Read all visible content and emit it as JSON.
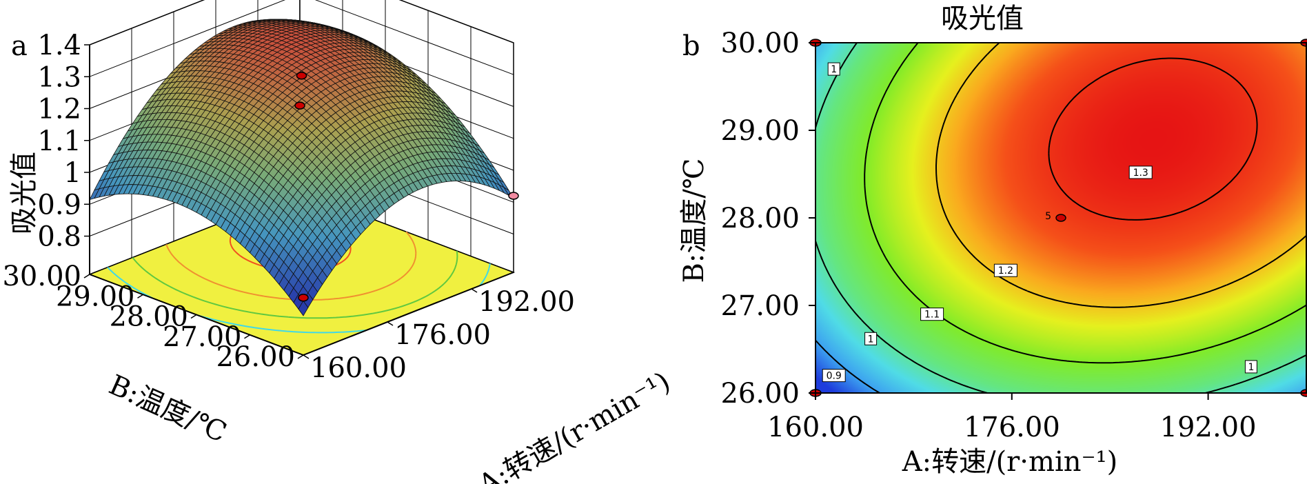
{
  "chart_data": [
    {
      "type": "surface",
      "panel_label": "a",
      "title": "",
      "xlabel": "A:转速/(r·min⁻¹)",
      "ylabel": "B:温度/℃",
      "zlabel": "吸光值",
      "x_ticks": [
        "160.00",
        "176.00",
        "192.00"
      ],
      "y_ticks": [
        "26.00",
        "27.00",
        "28.00",
        "29.00",
        "30.00"
      ],
      "z_ticks": [
        "0.8",
        "0.9",
        "1",
        "1.1",
        "1.2",
        "1.3",
        "1.4"
      ],
      "xlim": [
        160,
        200
      ],
      "ylim": [
        26,
        30
      ],
      "zlim": [
        0.8,
        1.4
      ],
      "surface_peak": {
        "x": 186,
        "y": 28.8,
        "z": 1.33
      },
      "surface_corners": [
        {
          "x": 160,
          "y": 26,
          "z": 0.85
        },
        {
          "x": 200,
          "y": 26,
          "z": 0.9
        },
        {
          "x": 160,
          "y": 30,
          "z": 0.93
        },
        {
          "x": 200,
          "y": 30,
          "z": 1.0
        }
      ],
      "design_points": [
        {
          "x": 160,
          "y": 26,
          "z": 0.86,
          "color": "#cc0000"
        },
        {
          "x": 200,
          "y": 30,
          "z": 0.95,
          "color": "#cc0000"
        },
        {
          "x": 200,
          "y": 26,
          "z": 0.92,
          "color": "#f08aa0"
        },
        {
          "x": 180,
          "y": 28,
          "z": 1.3,
          "color": "#cc0000"
        }
      ],
      "floor_color": "#f0f040",
      "grid": true
    },
    {
      "type": "contour",
      "panel_label": "b",
      "title": "吸光值",
      "xlabel": "A:转速/(r·min⁻¹)",
      "ylabel": "B:温度/℃",
      "x_ticks": [
        "160.00",
        "176.00",
        "192.00"
      ],
      "y_ticks": [
        "26.00",
        "27.00",
        "28.00",
        "29.00",
        "30.00"
      ],
      "xlim": [
        160,
        200
      ],
      "ylim": [
        26,
        30
      ],
      "contour_levels": [
        {
          "value": 0.9,
          "label": "0.9",
          "label_at": [
            161.5,
            26.2
          ]
        },
        {
          "value": 1.0,
          "label": "1",
          "label_at": [
            161.5,
            29.7
          ]
        },
        {
          "value": 1.0,
          "label": "1",
          "label_at": [
            164.5,
            26.62
          ]
        },
        {
          "value": 1.0,
          "label": "1",
          "label_at": [
            195.5,
            26.3
          ]
        },
        {
          "value": 1.1,
          "label": "1.1",
          "label_at": [
            169.5,
            26.9
          ]
        },
        {
          "value": 1.2,
          "label": "1.2",
          "label_at": [
            175.5,
            27.4
          ]
        },
        {
          "value": 1.3,
          "label": "1.3",
          "label_at": [
            186.5,
            28.52
          ]
        }
      ],
      "center_point": {
        "x": 180,
        "y": 28,
        "label": "5"
      },
      "corner_points": [
        {
          "x": 160,
          "y": 30
        },
        {
          "x": 160,
          "y": 26
        },
        {
          "x": 200,
          "y": 30
        },
        {
          "x": 200,
          "y": 26
        }
      ],
      "surface_peak": {
        "x": 187.5,
        "y": 28.9,
        "z": 1.33
      }
    }
  ]
}
